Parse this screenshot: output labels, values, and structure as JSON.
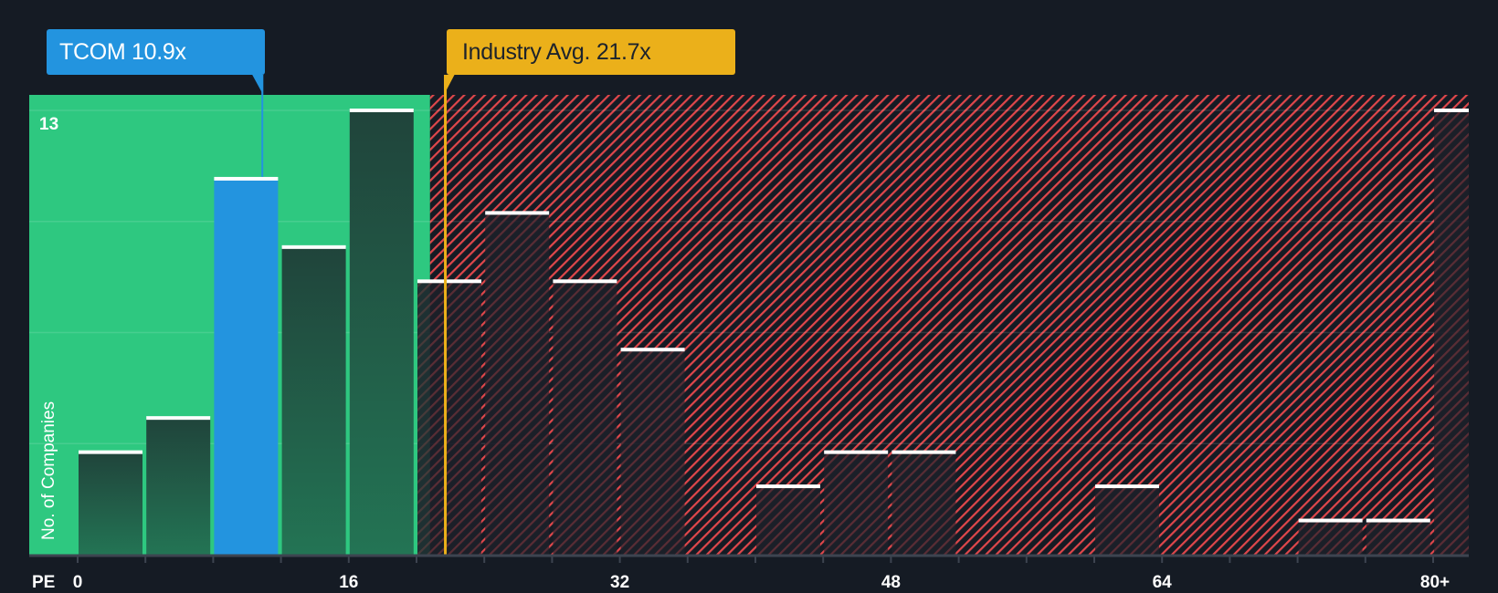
{
  "callouts": {
    "company": {
      "label": "TCOM 10.9x",
      "value": 10.9,
      "color": "#2394df"
    },
    "industry": {
      "label": "Industry Avg. 21.7x",
      "value": 21.7,
      "color": "#ebb01a"
    }
  },
  "axis": {
    "x_title": "PE",
    "y_title": "No. of Companies",
    "y_max_label": "13"
  },
  "colors": {
    "background": "#151b24",
    "undervalued_zone": "#2ec880",
    "overvalued_hatch": "#e0474b",
    "bar_in_green": "#214a3e",
    "bar_in_red": "#1c1f29",
    "bar_highlight": "#2394df",
    "bar_cap": "#ffffff",
    "axis_line": "#3d4450",
    "gridline": "rgba(255,255,255,0.12)"
  },
  "chart_data": {
    "type": "bar",
    "title": "",
    "xlabel": "PE",
    "ylabel": "No. of Companies",
    "bin_width": 4,
    "x_ticks": [
      0,
      16,
      32,
      48,
      64,
      "80+"
    ],
    "ylim": [
      0,
      13
    ],
    "y_gridlines": [
      3.25,
      6.5,
      9.75,
      13
    ],
    "grid": true,
    "legend": "none",
    "highlight_bin": "8-12",
    "green_zone_end": 20.8,
    "company_pe": 10.9,
    "industry_avg_pe": 21.7,
    "categories": [
      "0-4",
      "4-8",
      "8-12",
      "12-16",
      "16-20",
      "20-24",
      "24-28",
      "28-32",
      "32-36",
      "36-40",
      "40-44",
      "44-48",
      "48-52",
      "52-56",
      "56-60",
      "60-64",
      "64-68",
      "68-72",
      "72-76",
      "76-80",
      "80+"
    ],
    "values": [
      3,
      4,
      11,
      9,
      13,
      8,
      10,
      8,
      6,
      0,
      2,
      3,
      3,
      0,
      0,
      2,
      0,
      0,
      1,
      1,
      13
    ]
  }
}
